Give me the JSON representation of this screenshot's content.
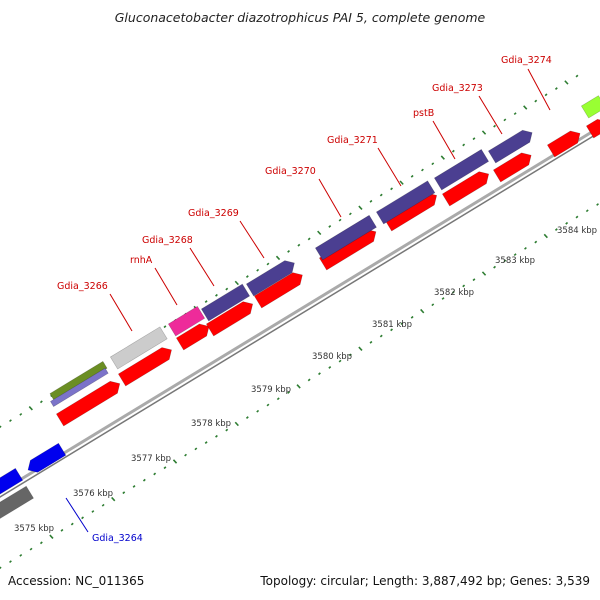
{
  "header": {
    "title": "Gluconacetobacter diazotrophicus PAI 5, complete genome"
  },
  "footer": {
    "accession": "Accession: NC_011365",
    "topology": "Topology: circular; Length: 3,887,492 bp; Genes: 3,539"
  },
  "ticks": [
    "3575 kbp",
    "3576 kbp",
    "3577 kbp",
    "3578 kbp",
    "3579 kbp",
    "3580 kbp",
    "3581 kbp",
    "3582 kbp",
    "3583 kbp",
    "3584 kbp"
  ],
  "gene_labels": [
    {
      "text": "Gdia_3264",
      "color": "#0000cc"
    },
    {
      "text": "Gdia_3266",
      "color": "#cc0000"
    },
    {
      "text": "rnhA",
      "color": "#cc0000"
    },
    {
      "text": "Gdia_3268",
      "color": "#cc0000"
    },
    {
      "text": "Gdia_3269",
      "color": "#cc0000"
    },
    {
      "text": "Gdia_3270",
      "color": "#cc0000"
    },
    {
      "text": "Gdia_3271",
      "color": "#cc0000"
    },
    {
      "text": "pstB",
      "color": "#cc0000"
    },
    {
      "text": "Gdia_3273",
      "color": "#cc0000"
    },
    {
      "text": "Gdia_3274",
      "color": "#cc0000"
    }
  ],
  "colors": {
    "cds_red": "#ff0000",
    "cog_purple": "#4b3f91",
    "rnhA_pink": "#ee2b9a",
    "grey_gene": "#cccccc",
    "olive_gene": "#6b8e23",
    "lavender_gene": "#7b73c9",
    "blue_gene": "#0000ee",
    "dark_grey_gene": "#666666",
    "lime_gene": "#99ff33",
    "backbone": "#999999",
    "tick_green": "#2e7d32"
  }
}
